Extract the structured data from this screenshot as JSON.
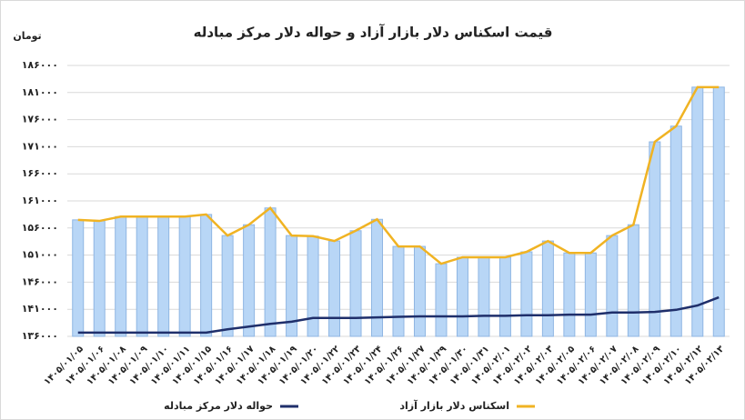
{
  "chart_data": {
    "type": "bar-line",
    "title": "قیمت اسکناس دلار بازار آزاد و حواله دلار مرکز مبادله",
    "y_unit": "تومان",
    "categories": [
      "۱۴۰۵/۰۱/۰۵",
      "۱۴۰۵/۰۱/۰۶",
      "۱۴۰۵/۰۱/۰۸",
      "۱۴۰۵/۰۱/۰۹",
      "۱۴۰۵/۰۱/۱۰",
      "۱۴۰۵/۰۱/۱۱",
      "۱۴۰۵/۰۱/۱۵",
      "۱۴۰۵/۰۱/۱۶",
      "۱۴۰۵/۰۱/۱۷",
      "۱۴۰۵/۰۱/۱۸",
      "۱۴۰۵/۰۱/۱۹",
      "۱۴۰۵/۰۱/۲۰",
      "۱۴۰۵/۰۱/۲۲",
      "۱۴۰۵/۰۱/۲۳",
      "۱۴۰۵/۰۱/۲۴",
      "۱۴۰۵/۰۱/۲۶",
      "۱۴۰۵/۰۱/۲۷",
      "۱۴۰۵/۰۱/۲۹",
      "۱۴۰۵/۰۱/۳۰",
      "۱۴۰۵/۰۱/۳۱",
      "۱۴۰۵/۰۲/۰۱",
      "۱۴۰۵/۰۲/۰۲",
      "۱۴۰۵/۰۲/۰۳",
      "۱۴۰۵/۰۲/۰۵",
      "۱۴۰۵/۰۲/۰۶",
      "۱۴۰۵/۰۲/۰۷",
      "۱۴۰۵/۰۲/۰۸",
      "۱۴۰۵/۰۲/۰۹",
      "۱۴۰۵/۰۲/۱۰",
      "۱۴۰۵/۰۲/۱۲",
      "۱۴۰۵/۰۲/۱۳"
    ],
    "series": [
      {
        "name": "حواله دلار مرکز مبادله",
        "color": "#1f2f6b",
        "values": [
          136700,
          136700,
          136700,
          136700,
          136700,
          136700,
          136700,
          137300,
          137800,
          138300,
          138700,
          139400,
          139400,
          139400,
          139500,
          139600,
          139700,
          139700,
          139700,
          139800,
          139800,
          139900,
          139900,
          140000,
          140000,
          140400,
          140400,
          140500,
          140900,
          141700,
          143200
        ]
      },
      {
        "name": "اسکناس دلار بازار آزاد",
        "color": "#f0b323",
        "bar_color": "#b8d6f6",
        "bar_edge": "#8fb6e3",
        "values": [
          157500,
          157300,
          158100,
          158100,
          158100,
          158100,
          158500,
          154600,
          156600,
          159700,
          154600,
          154500,
          153600,
          155500,
          157600,
          152600,
          152600,
          149400,
          150600,
          150600,
          150600,
          151600,
          153600,
          151400,
          151400,
          154600,
          156600,
          171900,
          174800,
          182000,
          182000
        ]
      }
    ],
    "ylim": [
      136000,
      186000
    ],
    "yticks": [
      {
        "value": 136000,
        "label": "۱۳۶۰۰۰"
      },
      {
        "value": 141000,
        "label": "۱۴۱۰۰۰"
      },
      {
        "value": 146000,
        "label": "۱۴۶۰۰۰"
      },
      {
        "value": 151000,
        "label": "۱۵۱۰۰۰"
      },
      {
        "value": 156000,
        "label": "۱۵۶۰۰۰"
      },
      {
        "value": 161000,
        "label": "۱۶۱۰۰۰"
      },
      {
        "value": 166000,
        "label": "۱۶۶۰۰۰"
      },
      {
        "value": 171000,
        "label": "۱۷۱۰۰۰"
      },
      {
        "value": 176000,
        "label": "۱۷۶۰۰۰"
      },
      {
        "value": 181000,
        "label": "۱۸۱۰۰۰"
      },
      {
        "value": 186000,
        "label": "۱۸۶۰۰۰"
      }
    ],
    "grid": true
  }
}
